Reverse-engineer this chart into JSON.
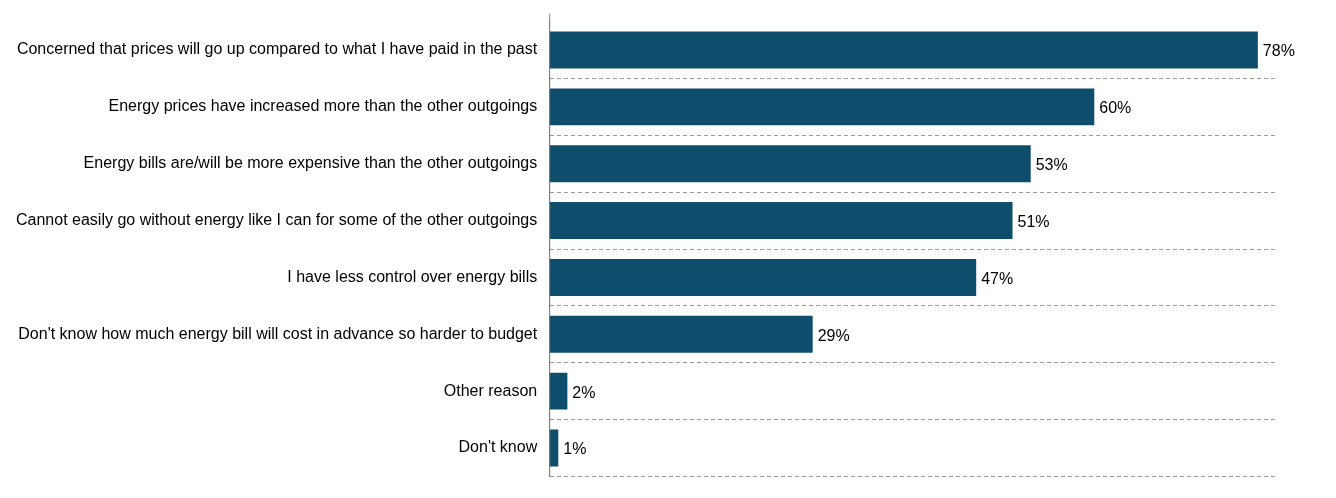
{
  "chart_data": {
    "type": "bar",
    "orientation": "horizontal",
    "categories": [
      "Concerned that prices will go up compared to what I have paid in the past",
      "Energy prices have increased more than the other outgoings",
      "Energy bills are/will be more expensive than the other outgoings",
      "Cannot easily go without energy like I can for some of the other outgoings",
      "I have less control over energy bills",
      "Don't know how much energy bill will cost in advance so harder to budget",
      "Other reason",
      "Don't know"
    ],
    "values": [
      78,
      60,
      53,
      51,
      47,
      29,
      2,
      1
    ],
    "value_labels": [
      "78%",
      "60%",
      "53%",
      "51%",
      "47%",
      "29%",
      "2%",
      "1%"
    ],
    "color": "#0e4d6b",
    "grid": "y",
    "legend": false,
    "tick_labels": "y"
  }
}
